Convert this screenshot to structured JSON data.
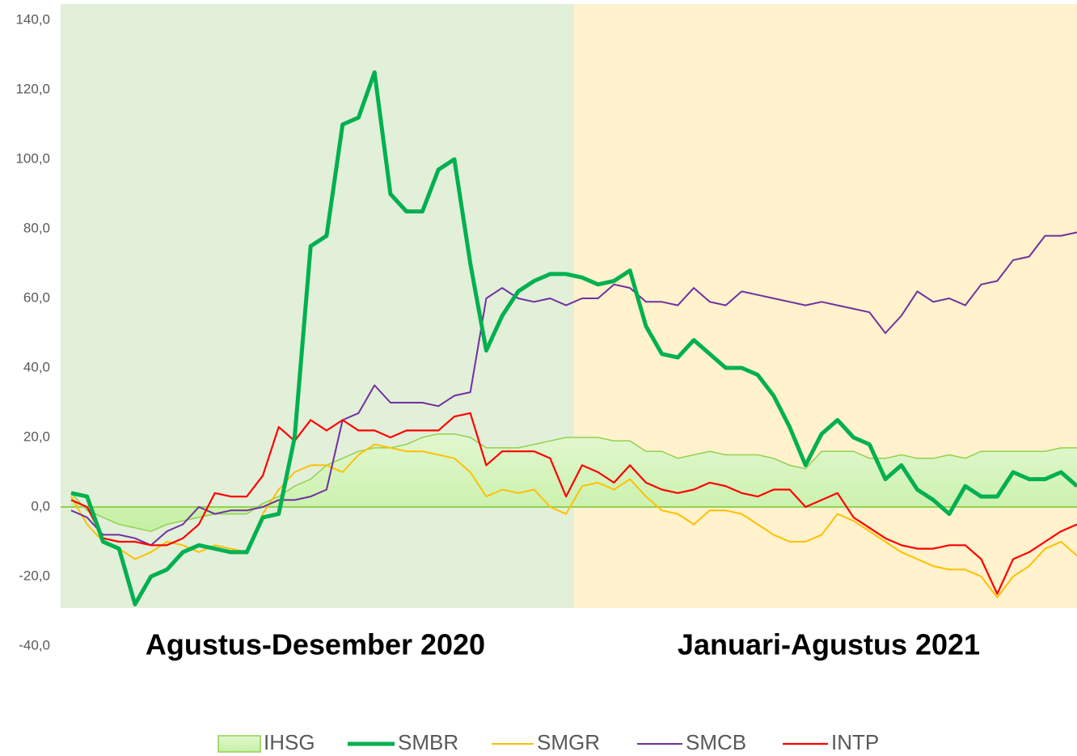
{
  "chart_data": {
    "type": "line",
    "annotations": [
      "Agustus-Desember 2020",
      "Januari-Agustus 2021"
    ],
    "ylim": [
      -40,
      140
    ],
    "yticks": [
      {
        "value": -40,
        "label": "-40,0"
      },
      {
        "value": -20,
        "label": "-20,0"
      },
      {
        "value": 0,
        "label": "0,0"
      },
      {
        "value": 20,
        "label": "20,0"
      },
      {
        "value": 40,
        "label": "40,0"
      },
      {
        "value": 60,
        "label": "60,0"
      },
      {
        "value": 80,
        "label": "80,0"
      },
      {
        "value": 100,
        "label": "100,0"
      },
      {
        "value": 120,
        "label": "120,0"
      },
      {
        "value": 140,
        "label": "140,0"
      }
    ],
    "series": [
      {
        "name": "IHSG",
        "color": "#92d050",
        "kind": "area",
        "values": [
          4,
          -1,
          -3,
          -5,
          -6,
          -7,
          -5,
          -4,
          -3,
          -2,
          -2,
          -2,
          1,
          3,
          6,
          8,
          12,
          14,
          16,
          17,
          17,
          18,
          20,
          21,
          21,
          20,
          17,
          17,
          17,
          18,
          19,
          20,
          20,
          20,
          19,
          19,
          16,
          16,
          14,
          15,
          16,
          15,
          15,
          15,
          14,
          12,
          11,
          16,
          16,
          16,
          14,
          14,
          15,
          14,
          14,
          15,
          14,
          16,
          16,
          16,
          16,
          16,
          17,
          17
        ]
      },
      {
        "name": "SMBR",
        "color": "#00b050",
        "values": [
          4,
          3,
          -10,
          -12,
          -28,
          -20,
          -18,
          -13,
          -11,
          -12,
          -13,
          -13,
          -3,
          -2,
          20,
          75,
          78,
          110,
          112,
          125,
          90,
          85,
          85,
          97,
          100,
          70,
          45,
          55,
          62,
          65,
          67,
          67,
          66,
          64,
          65,
          68,
          52,
          44,
          43,
          48,
          44,
          40,
          40,
          38,
          32,
          23,
          12,
          21,
          25,
          20,
          18,
          8,
          12,
          5,
          2,
          -2,
          6,
          3,
          3,
          10,
          8,
          8,
          10,
          6
        ]
      },
      {
        "name": "SMGR",
        "color": "#ffc000",
        "values": [
          3,
          -5,
          -10,
          -12,
          -15,
          -13,
          -10,
          -11,
          -13,
          -11,
          -12,
          -13,
          -2,
          5,
          10,
          12,
          12,
          10,
          15,
          18,
          17,
          16,
          16,
          15,
          14,
          10,
          3,
          5,
          4,
          5,
          0,
          -2,
          6,
          7,
          5,
          8,
          3,
          -1,
          -2,
          -5,
          -1,
          -1,
          -2,
          -5,
          -8,
          -10,
          -10,
          -8,
          -2,
          -4,
          -7,
          -10,
          -13,
          -15,
          -17,
          -18,
          -18,
          -20,
          -26,
          -20,
          -17,
          -12,
          -10,
          -14
        ]
      },
      {
        "name": "SMCB",
        "color": "#7030a0",
        "values": [
          -1,
          -3,
          -8,
          -8,
          -9,
          -11,
          -7,
          -5,
          0,
          -2,
          -1,
          -1,
          0,
          2,
          2,
          3,
          5,
          25,
          27,
          35,
          30,
          30,
          30,
          29,
          32,
          33,
          60,
          63,
          60,
          59,
          60,
          58,
          60,
          60,
          64,
          63,
          59,
          59,
          58,
          63,
          59,
          58,
          62,
          61,
          60,
          59,
          58,
          59,
          58,
          57,
          56,
          50,
          55,
          62,
          59,
          60,
          58,
          64,
          65,
          71,
          72,
          78,
          78,
          79
        ]
      },
      {
        "name": "INTP",
        "color": "#ff0000",
        "values": [
          2,
          0,
          -9,
          -10,
          -10,
          -11,
          -11,
          -9,
          -5,
          4,
          3,
          3,
          9,
          23,
          19,
          25,
          22,
          25,
          22,
          22,
          20,
          22,
          22,
          22,
          26,
          27,
          12,
          16,
          16,
          16,
          14,
          3,
          12,
          10,
          7,
          12,
          7,
          5,
          4,
          5,
          7,
          6,
          4,
          3,
          5,
          5,
          0,
          2,
          4,
          -3,
          -6,
          -9,
          -11,
          -12,
          -12,
          -11,
          -11,
          -15,
          -25,
          -15,
          -13,
          -10,
          -7,
          -5
        ]
      }
    ]
  }
}
